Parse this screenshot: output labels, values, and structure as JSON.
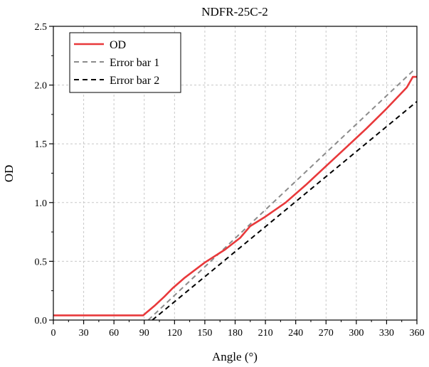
{
  "chart_data": {
    "type": "line",
    "title": "NDFR-25C-2",
    "xlabel": "Angle (°)",
    "ylabel": "OD",
    "xlim": [
      0,
      360
    ],
    "ylim": [
      0.0,
      2.5
    ],
    "xticks": [
      0,
      30,
      60,
      90,
      120,
      150,
      180,
      210,
      240,
      270,
      300,
      330,
      360
    ],
    "yticks": [
      0.0,
      0.5,
      1.0,
      1.5,
      2.0,
      2.5
    ],
    "xtick_labels": [
      "0",
      "30",
      "60",
      "90",
      "120",
      "150",
      "180",
      "210",
      "240",
      "270",
      "300",
      "330",
      "360"
    ],
    "ytick_labels": [
      "0.0",
      "0.5",
      "1.0",
      "1.5",
      "2.0",
      "2.5"
    ],
    "grid": true,
    "legend_position": "top-left",
    "series": [
      {
        "name": "OD",
        "color": "#e8393b",
        "style": "solid",
        "x": [
          0,
          89,
          93,
          100,
          110,
          118,
          130,
          150,
          170,
          185,
          195,
          210,
          230,
          250,
          270,
          290,
          310,
          330,
          350,
          356,
          360
        ],
        "y": [
          0.04,
          0.04,
          0.07,
          0.12,
          0.2,
          0.27,
          0.36,
          0.49,
          0.6,
          0.7,
          0.8,
          0.88,
          1.0,
          1.15,
          1.31,
          1.47,
          1.63,
          1.8,
          1.98,
          2.07,
          2.07
        ]
      },
      {
        "name": "Error bar 1",
        "color": "#8c8c8c",
        "style": "dashed",
        "x": [
          94,
          356
        ],
        "y": [
          0.0,
          2.12
        ]
      },
      {
        "name": "Error bar 2",
        "color": "#000000",
        "style": "dashed",
        "x": [
          98,
          360
        ],
        "y": [
          0.0,
          1.86
        ]
      }
    ]
  }
}
